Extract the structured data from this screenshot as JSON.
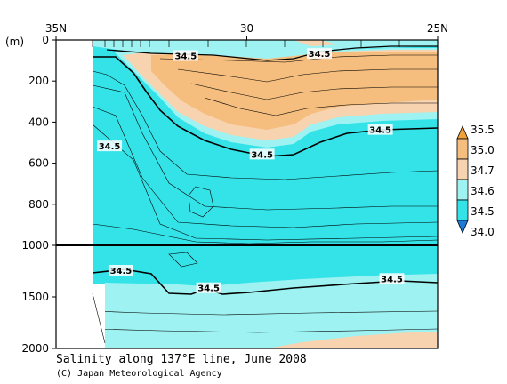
{
  "chart_data": {
    "type": "heatmap",
    "title": "Salinity along 137°E line, June 2008",
    "credit": "(C) Japan Meteorological Agency",
    "x_ticks": [
      "35N",
      "30",
      "25N"
    ],
    "y_unit": "(m)",
    "y_ticks_upper": [
      "0",
      "200",
      "400",
      "600",
      "800",
      "1000"
    ],
    "y_ticks_lower": [
      "1500",
      "2000"
    ],
    "y_break_depth": 1000,
    "legend": {
      "levels": [
        "35.5",
        "35.0",
        "34.7",
        "34.6",
        "34.5",
        "34.0"
      ],
      "colors": [
        "#f0a238",
        "#f5be7e",
        "#f7d3b0",
        "#9ef2f2",
        "#33e3e8",
        "#1e7ad6"
      ]
    },
    "contour_labels": [
      {
        "text": "34.5",
        "lat": 31.6,
        "depth": 80
      },
      {
        "text": "34.5",
        "lat": 28.1,
        "depth": 70
      },
      {
        "text": "34.5",
        "lat": 26.5,
        "depth": 440
      },
      {
        "text": "34.5",
        "lat": 33.6,
        "depth": 520
      },
      {
        "text": "34.5",
        "lat": 29.6,
        "depth": 560
      },
      {
        "text": "34.5",
        "lat": 33.3,
        "depth": 1250
      },
      {
        "text": "34.5",
        "lat": 31.0,
        "depth": 1420
      },
      {
        "text": "34.5",
        "lat": 26.2,
        "depth": 1330
      }
    ]
  }
}
